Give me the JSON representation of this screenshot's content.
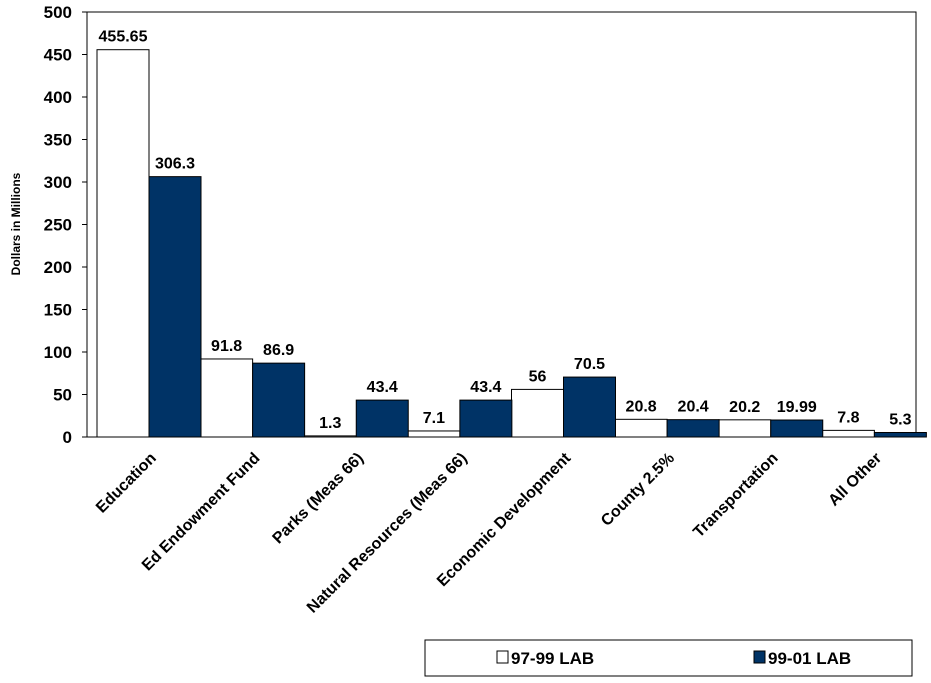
{
  "chart_data": {
    "type": "bar",
    "title": "",
    "xlabel": "",
    "ylabel": "Dollars in Millions",
    "ylim": [
      0,
      500
    ],
    "yticks": [
      "0",
      "50",
      "100",
      "150",
      "200",
      "250",
      "300",
      "350",
      "400",
      "450",
      "500"
    ],
    "grid": false,
    "legend_position": "bottom-right",
    "categories": [
      "Education",
      "Ed Endowment Fund",
      "Parks (Meas 66)",
      "Natural Resources (Meas 66)",
      "Economic Development",
      "County 2.5%",
      "Transportation",
      "All Other"
    ],
    "series": [
      {
        "name": "97-99 LAB",
        "color": "#ffffff",
        "values": [
          455.65,
          91.8,
          1.3,
          7.1,
          56,
          20.8,
          20.2,
          7.8
        ],
        "labels": [
          "455.65",
          "91.8",
          "1.3",
          "7.1",
          "56",
          "20.8",
          "20.2",
          "7.8"
        ]
      },
      {
        "name": "99-01 LAB",
        "color": "#003366",
        "values": [
          306.3,
          86.9,
          43.4,
          43.4,
          70.5,
          20.4,
          19.99,
          5.3
        ],
        "labels": [
          "306.3",
          "86.9",
          "43.4",
          "43.4",
          "70.5",
          "20.4",
          "19.99",
          "5.3"
        ]
      }
    ]
  }
}
